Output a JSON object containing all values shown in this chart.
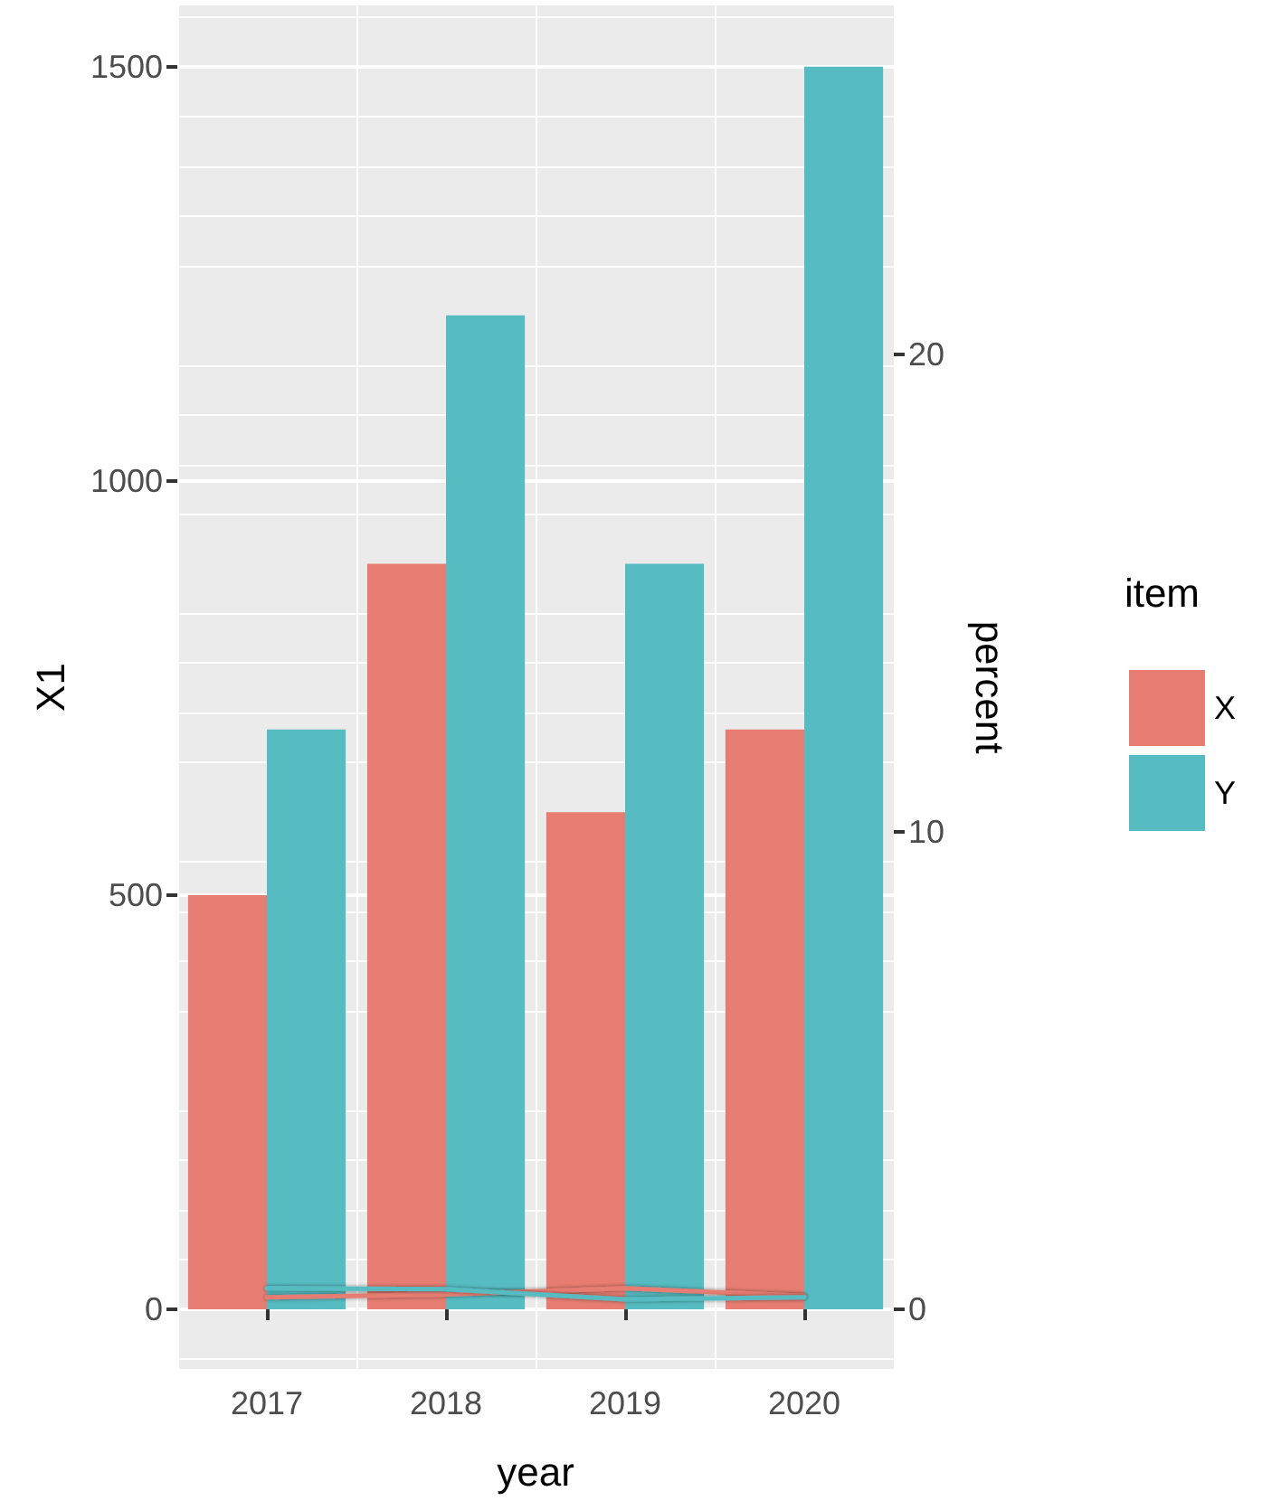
{
  "chart_data": {
    "type": "bar",
    "xlabel": "year",
    "ylabel": "X1",
    "y2label": "percent",
    "legend_title": "item",
    "categories": [
      "2017",
      "2018",
      "2019",
      "2020"
    ],
    "series": [
      {
        "name": "X",
        "color": "#e77d72",
        "values": [
          500,
          900,
          600,
          700
        ]
      },
      {
        "name": "Y",
        "color": "#56bcc2",
        "values": [
          700,
          1200,
          900,
          1500
        ]
      },
      {
        "type": "line",
        "axis": "y2",
        "color": "#e77d72",
        "values": [
          0.25,
          0.31,
          0.44,
          0.28
        ]
      },
      {
        "type": "line",
        "axis": "y2",
        "color": "#56bcc2",
        "values": [
          0.44,
          0.42,
          0.21,
          0.25
        ]
      }
    ],
    "ylim": [
      -72,
      1574
    ],
    "yticks": [
      0,
      500,
      1000,
      1500
    ],
    "y2lim": [
      -1.25,
      27.3
    ],
    "y2ticks": [
      0,
      10,
      20
    ],
    "grid": true,
    "legend": "right"
  }
}
